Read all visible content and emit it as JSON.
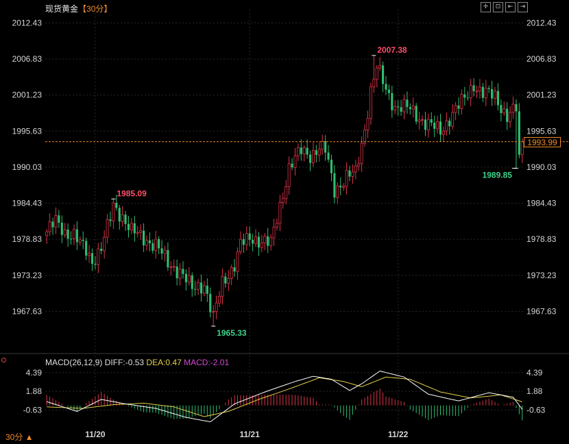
{
  "title": {
    "name": "现货黄金",
    "period": "【30分】"
  },
  "toolbar": [
    "crosshair-icon",
    "fit-icon",
    "zoom-out-icon",
    "zoom-in-icon"
  ],
  "current_price": "1993.99",
  "period_button": "30分 ▲",
  "macd_legend": {
    "name": "MACD(26,12,9)",
    "diff": "DIFF:-0.53",
    "dea": "DEA:0.47",
    "macd": "MACD:-2.01"
  },
  "colors": {
    "up": "#e0354a",
    "down": "#2fbf71",
    "diff": "#ffffff",
    "dea": "#e6d14a",
    "grid": "#3a3a3a",
    "accent": "#f08a2a"
  },
  "chart_data": [
    {
      "type": "candlestick",
      "title": "现货黄金",
      "y_ticks": [
        "2012.43",
        "2006.83",
        "2001.23",
        "1995.63",
        "1990.03",
        "1984.43",
        "1978.83",
        "1973.23",
        "1967.63"
      ],
      "ylim": [
        1961.5,
        2014.5
      ],
      "x_ticks": [
        "11/20",
        "11/21",
        "11/22"
      ],
      "x_tick_index": [
        16,
        67,
        116
      ],
      "current_price": 1993.99,
      "annotations": [
        {
          "text": "1985.09",
          "index": 22,
          "value": 1985.09,
          "type": "high"
        },
        {
          "text": "1965.33",
          "index": 55,
          "value": 1965.33,
          "type": "low"
        },
        {
          "text": "2007.38",
          "index": 108,
          "value": 2007.38,
          "type": "high"
        },
        {
          "text": "1989.85",
          "index": 155,
          "value": 1989.85,
          "type": "low"
        }
      ],
      "anchors": [
        [
          0,
          1980.0
        ],
        [
          3,
          1981.5
        ],
        [
          6,
          1980.0
        ],
        [
          9,
          1979.5
        ],
        [
          11,
          1978.0
        ],
        [
          13,
          1977.0
        ],
        [
          15,
          1975.5
        ],
        [
          18,
          1977.5
        ],
        [
          21,
          1982.0
        ],
        [
          22,
          1984.0
        ],
        [
          25,
          1982.5
        ],
        [
          28,
          1980.0
        ],
        [
          32,
          1979.0
        ],
        [
          36,
          1978.0
        ],
        [
          40,
          1975.0
        ],
        [
          44,
          1974.0
        ],
        [
          48,
          1971.0
        ],
        [
          52,
          1972.0
        ],
        [
          55,
          1966.5
        ],
        [
          58,
          1972.0
        ],
        [
          62,
          1975.0
        ],
        [
          64,
          1978.0
        ],
        [
          68,
          1979.0
        ],
        [
          72,
          1978.5
        ],
        [
          74,
          1978.0
        ],
        [
          78,
          1986.0
        ],
        [
          80,
          1990.0
        ],
        [
          84,
          1992.5
        ],
        [
          87,
          1992.0
        ],
        [
          90,
          1993.0
        ],
        [
          92,
          1992.5
        ],
        [
          95,
          1986.5
        ],
        [
          99,
          1988.5
        ],
        [
          102,
          1989.0
        ],
        [
          105,
          1996.0
        ],
        [
          107,
          2002.0
        ],
        [
          109,
          2005.5
        ],
        [
          112,
          2002.0
        ],
        [
          115,
          1999.5
        ],
        [
          120,
          1999.0
        ],
        [
          125,
          1997.0
        ],
        [
          130,
          1995.5
        ],
        [
          134,
          1998.5
        ],
        [
          138,
          2000.5
        ],
        [
          141,
          2003.0
        ],
        [
          144,
          2001.5
        ],
        [
          148,
          2001.0
        ],
        [
          152,
          1998.0
        ],
        [
          155,
          1999.0
        ],
        [
          156,
          1991.0
        ],
        [
          157,
          1993.99
        ]
      ],
      "macd": {
        "y_ticks": [
          "4.39",
          "1.88",
          "-0.63"
        ],
        "ylim": [
          -2.6,
          5.2
        ],
        "diff": [
          [
            0,
            0.5
          ],
          [
            10,
            -0.8
          ],
          [
            18,
            0.8
          ],
          [
            26,
            0.2
          ],
          [
            36,
            -0.4
          ],
          [
            46,
            -1.6
          ],
          [
            54,
            -2.2
          ],
          [
            62,
            0.2
          ],
          [
            72,
            1.8
          ],
          [
            82,
            3.2
          ],
          [
            88,
            3.9
          ],
          [
            94,
            3.5
          ],
          [
            100,
            2.0
          ],
          [
            104,
            2.9
          ],
          [
            110,
            4.6
          ],
          [
            118,
            3.8
          ],
          [
            126,
            1.5
          ],
          [
            136,
            0.6
          ],
          [
            146,
            1.7
          ],
          [
            154,
            1.1
          ],
          [
            157,
            -0.53
          ]
        ],
        "dea": [
          [
            0,
            -0.2
          ],
          [
            12,
            -0.4
          ],
          [
            22,
            0.1
          ],
          [
            32,
            0.3
          ],
          [
            42,
            -0.2
          ],
          [
            52,
            -1.5
          ],
          [
            60,
            -0.8
          ],
          [
            70,
            0.8
          ],
          [
            80,
            2.2
          ],
          [
            90,
            3.7
          ],
          [
            98,
            3.2
          ],
          [
            104,
            2.5
          ],
          [
            112,
            3.8
          ],
          [
            120,
            3.5
          ],
          [
            130,
            1.8
          ],
          [
            140,
            1.0
          ],
          [
            150,
            1.4
          ],
          [
            157,
            0.47
          ]
        ]
      }
    }
  ]
}
